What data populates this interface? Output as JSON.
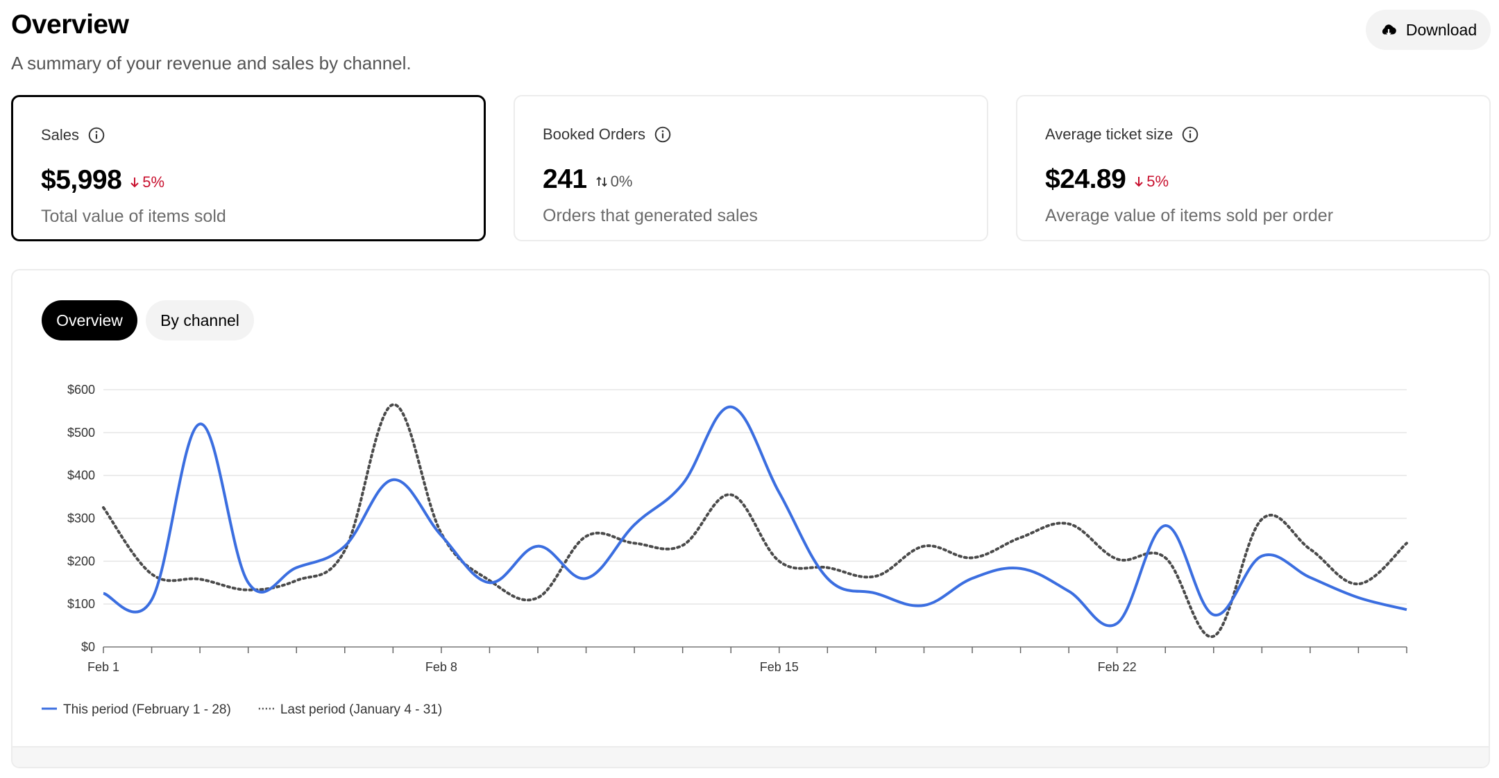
{
  "header": {
    "title": "Overview",
    "subtitle": "A summary of your revenue and sales by channel.",
    "download_label": "Download",
    "download_icon": "cloud-download-icon"
  },
  "cards": [
    {
      "title": "Sales",
      "value": "$5,998",
      "delta": "5%",
      "delta_dir": "down",
      "description": "Total value of items sold",
      "selected": true
    },
    {
      "title": "Booked Orders",
      "value": "241",
      "delta": "0%",
      "delta_dir": "neutral",
      "description": "Orders that generated sales",
      "selected": false
    },
    {
      "title": "Average ticket size",
      "value": "$24.89",
      "delta": "5%",
      "delta_dir": "down",
      "description": "Average value of items sold per order",
      "selected": false
    }
  ],
  "tabs": [
    {
      "label": "Overview",
      "active": true
    },
    {
      "label": "By channel",
      "active": false
    }
  ],
  "colors": {
    "this_period": "#3b6ee0",
    "last_period": "#4a4a4a",
    "negative": "#c8102e",
    "gridline": "#e5e5e5"
  },
  "chart_data": {
    "type": "line",
    "title": "",
    "xlabel": "",
    "ylabel": "",
    "x": [
      "Feb 1",
      "Feb 2",
      "Feb 3",
      "Feb 4",
      "Feb 5",
      "Feb 6",
      "Feb 7",
      "Feb 8",
      "Feb 9",
      "Feb 10",
      "Feb 11",
      "Feb 12",
      "Feb 13",
      "Feb 14",
      "Feb 15",
      "Feb 16",
      "Feb 17",
      "Feb 18",
      "Feb 19",
      "Feb 20",
      "Feb 21",
      "Feb 22",
      "Feb 23",
      "Feb 24",
      "Feb 25",
      "Feb 26",
      "Feb 27",
      "Feb 28"
    ],
    "x_tick_labels": [
      {
        "index": 0,
        "label": "Feb 1"
      },
      {
        "index": 7,
        "label": "Feb 8"
      },
      {
        "index": 14,
        "label": "Feb 15"
      },
      {
        "index": 21,
        "label": "Feb 22"
      }
    ],
    "y_ticks": [
      "$0",
      "$100",
      "$200",
      "$300",
      "$400",
      "$500",
      "$600"
    ],
    "ylim": [
      0,
      600
    ],
    "grid": true,
    "legend_position": "bottom-left",
    "series": [
      {
        "name": "This period (February 1 - 28)",
        "style": "solid",
        "values": [
          125,
          110,
          520,
          150,
          185,
          235,
          390,
          260,
          150,
          235,
          160,
          285,
          380,
          560,
          360,
          160,
          125,
          97,
          160,
          183,
          130,
          55,
          283,
          75,
          212,
          162,
          115,
          87
        ]
      },
      {
        "name": "Last period (January 4 - 31)",
        "style": "dotted",
        "values": [
          325,
          170,
          158,
          133,
          155,
          225,
          565,
          265,
          155,
          115,
          258,
          242,
          237,
          355,
          200,
          185,
          165,
          235,
          208,
          255,
          287,
          205,
          208,
          25,
          298,
          228,
          147,
          242
        ]
      }
    ]
  }
}
